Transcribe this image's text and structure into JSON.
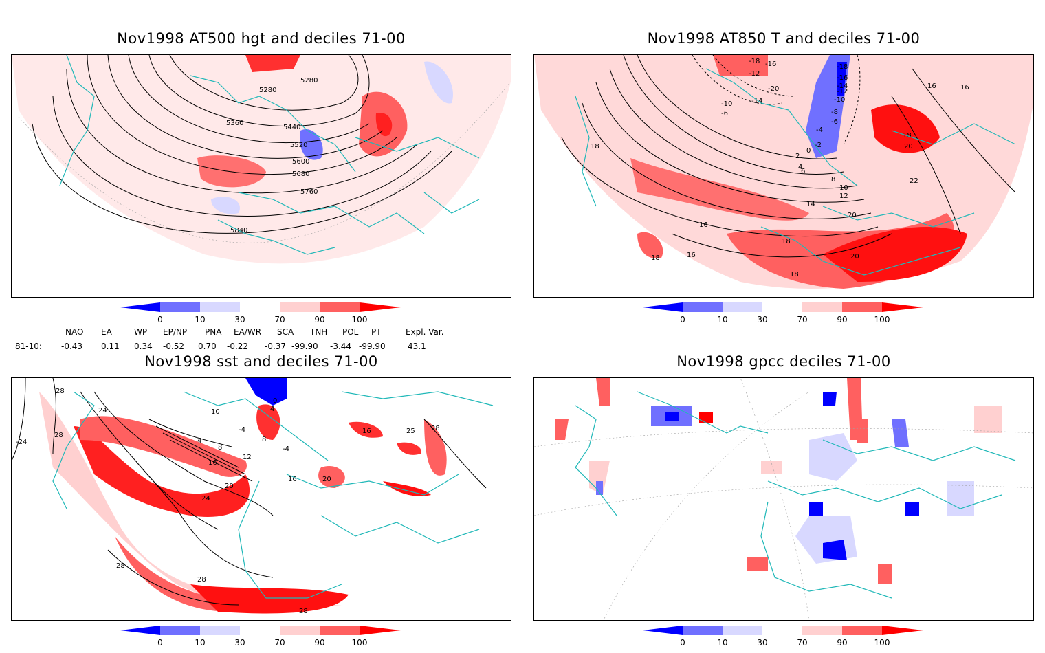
{
  "titles": {
    "p1": "Nov1998 AT500 hgt and deciles 71-00",
    "p2": "Nov1998 AT850 T and deciles 71-00",
    "p3": "Nov1998 sst and deciles 71-00",
    "p4": "Nov1998 gpcc deciles 71-00"
  },
  "colorbar": {
    "labels": [
      "0",
      "10",
      "30",
      "70",
      "90",
      "100"
    ],
    "colors": [
      "#0000ff",
      "#7070ff",
      "#d8d8ff",
      "#ffffff",
      "#ffd0d0",
      "#ff6060",
      "#ff0000"
    ]
  },
  "indices": {
    "names": [
      "NAO",
      "EA",
      "WP",
      "EP/NP",
      "PNA",
      "EA/WR",
      "SCA",
      "TNH",
      "POL",
      "PT",
      "Expl. Var."
    ],
    "row_label": "81-10:",
    "values": [
      "-0.43",
      "0.11",
      "0.34",
      "-0.52",
      "0.70",
      "-0.22",
      "-0.37",
      "-99.90",
      "-3.44",
      "-99.90",
      "43.1"
    ]
  },
  "contour_labels": {
    "p1": [
      "5280",
      "5280",
      "5360",
      "5440",
      "5520",
      "5600",
      "5680",
      "5760",
      "5840"
    ],
    "p2": [
      "-18",
      "-16",
      "-12",
      "-20",
      "-14",
      "-10",
      "-6",
      "-18",
      "-16",
      "-14",
      "-12",
      "-10",
      "-8",
      "-6",
      "-4",
      "-2",
      "0",
      "2",
      "4",
      "6",
      "8",
      "10",
      "12",
      "14",
      "16",
      "16",
      "16",
      "18",
      "18",
      "20",
      "22",
      "20",
      "18",
      "20",
      "18",
      "16",
      "18"
    ],
    "p3": [
      "28",
      "24",
      "-24",
      "28",
      "10",
      "0",
      "4",
      "-4",
      "4",
      "8",
      "-4",
      "8",
      "12",
      "16",
      "16",
      "20",
      "24",
      "20",
      "25",
      "28",
      "16",
      "28",
      "28",
      "28"
    ]
  },
  "colors": {
    "land_boundary": "#20b8b8",
    "contour": "#000000",
    "grid": "#a0a0a0"
  }
}
